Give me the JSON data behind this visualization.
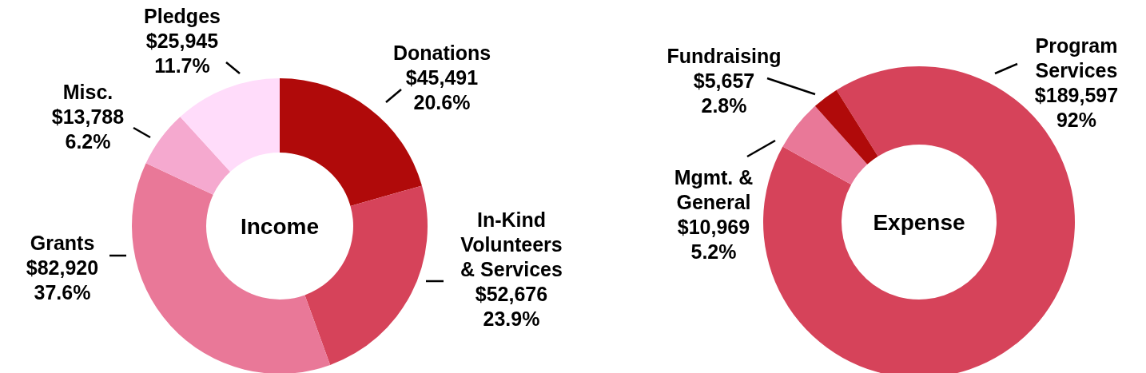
{
  "chart_data": [
    {
      "type": "donut",
      "title": "Income",
      "categories": [
        "Donations",
        "In-Kind Volunteers & Services",
        "Grants",
        "Misc.",
        "Pledges"
      ],
      "values": [
        45491,
        52676,
        82920,
        13788,
        25945
      ],
      "colors": [
        "#b00a0a",
        "#d6435a",
        "#e97898",
        "#f5a9cf",
        "#ffdcfa"
      ],
      "value_labels": [
        "$45,491\n20.6%",
        "$52,676\n23.9%",
        "$82,920\n37.6%",
        "$13,788\n6.2%",
        "$25,945\n11.7%"
      ]
    },
    {
      "type": "donut",
      "title": "Expense",
      "categories": [
        "Program Services",
        "Mgmt. & General",
        "Fundraising"
      ],
      "values": [
        189597,
        10969,
        5657
      ],
      "colors": [
        "#d6435a",
        "#e97898",
        "#b00a0a"
      ],
      "value_labels": [
        "$189,597\n92%",
        "$10,969\n5.2%",
        "$5,657\n2.8%"
      ]
    }
  ]
}
